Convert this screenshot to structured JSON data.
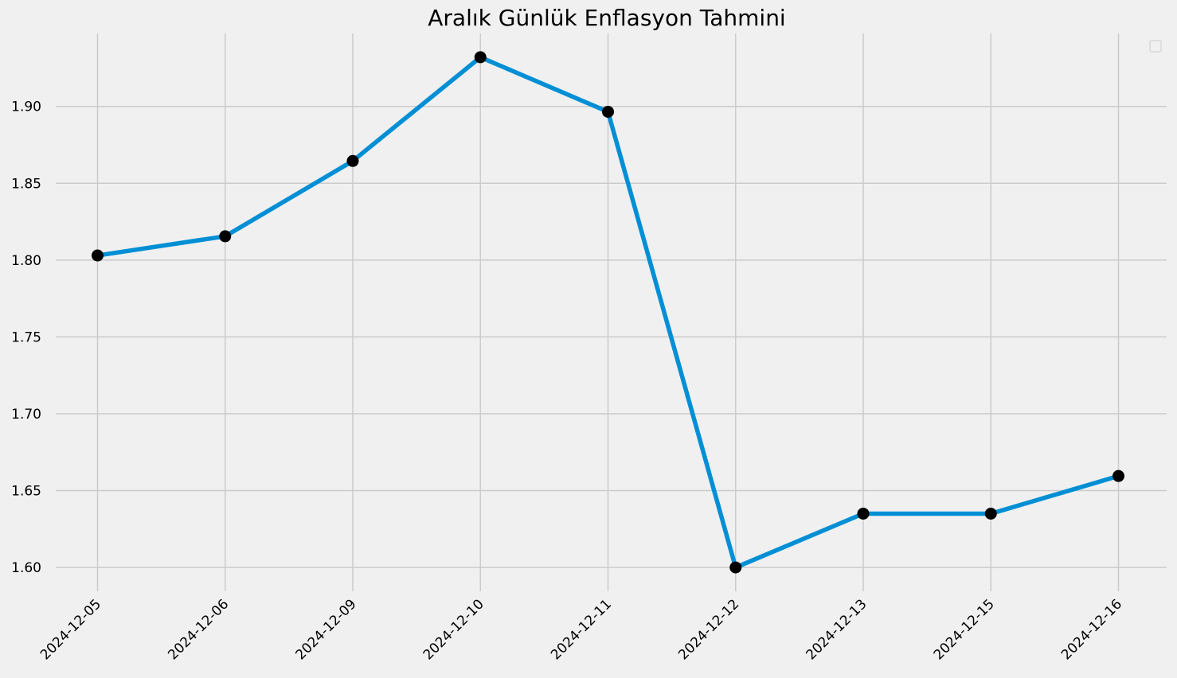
{
  "chart_data": {
    "type": "line",
    "title": "Aralık Günlük Enflasyon Tahmini",
    "xlabel": "",
    "ylabel": "",
    "categories": [
      "2024-12-05",
      "2024-12-06",
      "2024-12-09",
      "2024-12-10",
      "2024-12-11",
      "2024-12-12",
      "2024-12-13",
      "2024-12-15",
      "2024-12-16"
    ],
    "series": [
      {
        "values": [
          1.803,
          1.8155,
          1.8645,
          1.932,
          1.8965,
          1.6,
          1.635,
          1.635,
          1.6595
        ],
        "line_color": "#008fd5",
        "marker_color": "#000000"
      }
    ],
    "ylim": [
      1.5845,
      1.9475
    ],
    "yticks": [
      1.6,
      1.65,
      1.7,
      1.75,
      1.8,
      1.85,
      1.9
    ],
    "ytick_labels": [
      "1.60",
      "1.65",
      "1.70",
      "1.75",
      "1.80",
      "1.85",
      "1.90"
    ],
    "grid": true,
    "legend": "top-right, empty",
    "colors": {
      "background": "#f0f0f0",
      "grid": "#cbcbcb"
    }
  }
}
